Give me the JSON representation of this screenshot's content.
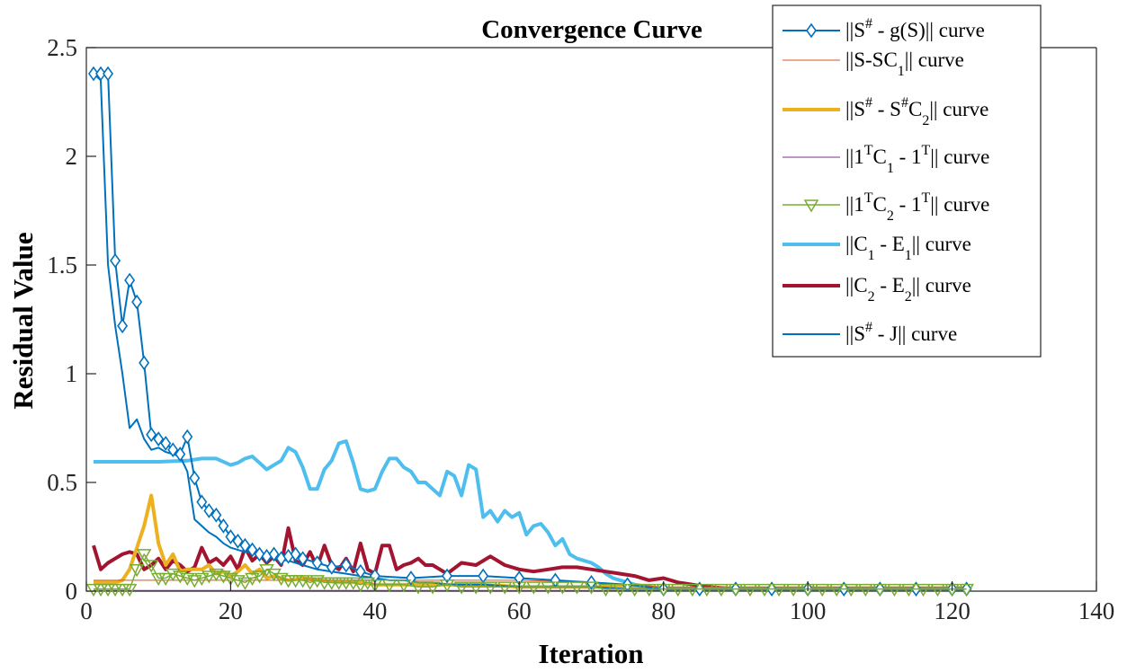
{
  "chart_data": {
    "type": "line",
    "title": "Convergence Curve",
    "xlabel": "Iteration",
    "ylabel": "Residual Value",
    "xlim": [
      0,
      140
    ],
    "ylim": [
      0,
      2.5
    ],
    "xticks": [
      0,
      20,
      40,
      60,
      80,
      100,
      120,
      140
    ],
    "xtick_labels": [
      "0",
      "20",
      "40",
      "60",
      "80",
      "100",
      "120",
      "140"
    ],
    "yticks": [
      0,
      0.5,
      1,
      1.5,
      2,
      2.5
    ],
    "ytick_labels": [
      "0",
      "0.5",
      "1",
      "1.5",
      "2",
      "2.5"
    ],
    "grid": false,
    "legend_position": "top-right",
    "legend": [
      {
        "pre": "||S",
        "sup1": "#",
        "mid1": " - g(S)|| curve",
        "sub1": "",
        "mid2": "",
        "sub2": "",
        "sup2": "",
        "post": ""
      },
      {
        "pre": "||S-SC",
        "sup1": "",
        "mid1": "",
        "sub1": "1",
        "mid2": "|| curve",
        "sub2": "",
        "sup2": "",
        "post": ""
      },
      {
        "pre": "||S",
        "sup1": "#",
        "mid1": " - S",
        "sub1": "",
        "mid2": "",
        "sub2": "",
        "sup2": "#",
        "post": "C",
        "sub3": "2",
        "tail": "|| curve"
      },
      {
        "pre": "||1",
        "sup1": "T",
        "mid1": "C",
        "sub1": "1",
        "mid2": " - 1",
        "sub2": "",
        "sup2": "T",
        "post": "|| curve"
      },
      {
        "pre": "||1",
        "sup1": "T",
        "mid1": "C",
        "sub1": "2",
        "mid2": " - 1",
        "sub2": "",
        "sup2": "T",
        "post": "|| curve"
      },
      {
        "pre": "||C",
        "sup1": "",
        "mid1": "",
        "sub1": "1",
        "mid2": " - E",
        "sub2": "1",
        "sup2": "",
        "post": "|| curve"
      },
      {
        "pre": "||C",
        "sup1": "",
        "mid1": "",
        "sub1": "2",
        "mid2": " - E",
        "sub2": "2",
        "sup2": "",
        "post": "|| curve"
      },
      {
        "pre": "||S",
        "sup1": "#",
        "mid1": " - J|| curve",
        "sub1": "",
        "mid2": "",
        "sub2": "",
        "sup2": "",
        "post": ""
      }
    ],
    "series": [
      {
        "name": "||S# - g(S)|| curve",
        "color": "#0072BD",
        "marker": "diamond",
        "x": [
          1,
          2,
          3,
          4,
          5,
          6,
          7,
          8,
          9,
          10,
          11,
          12,
          13,
          14,
          15,
          16,
          17,
          18,
          19,
          20,
          21,
          22,
          23,
          24,
          25,
          26,
          27,
          28,
          29,
          30,
          32,
          34,
          36,
          38,
          40,
          45,
          50,
          55,
          60,
          65,
          70,
          75,
          80,
          85,
          90,
          95,
          100,
          105,
          110,
          115,
          120,
          122
        ],
        "values": [
          2.38,
          2.38,
          2.38,
          1.52,
          1.22,
          1.43,
          1.33,
          1.05,
          0.72,
          0.7,
          0.68,
          0.65,
          0.63,
          0.71,
          0.52,
          0.41,
          0.37,
          0.35,
          0.3,
          0.25,
          0.23,
          0.21,
          0.19,
          0.17,
          0.16,
          0.17,
          0.15,
          0.16,
          0.17,
          0.15,
          0.13,
          0.11,
          0.12,
          0.09,
          0.07,
          0.06,
          0.07,
          0.07,
          0.06,
          0.05,
          0.04,
          0.03,
          0.01,
          0.01,
          0.01,
          0.01,
          0.01,
          0.01,
          0.01,
          0.01,
          0.01,
          0.01
        ]
      },
      {
        "name": "||S-SC1|| curve",
        "color": "#D95319",
        "marker": "none",
        "x": [
          1,
          10,
          20,
          30,
          40,
          50,
          60,
          70,
          80,
          90,
          100,
          110,
          122
        ],
        "values": [
          0.05,
          0.05,
          0.05,
          0.05,
          0.05,
          0.05,
          0.05,
          0.04,
          0.02,
          0.02,
          0.02,
          0.02,
          0.02
        ]
      },
      {
        "name": "||S# - S#C2|| curve",
        "color": "#EDB120",
        "marker": "none",
        "x": [
          1,
          2,
          3,
          4,
          5,
          6,
          7,
          8,
          9,
          10,
          11,
          12,
          13,
          14,
          15,
          16,
          17,
          18,
          19,
          20,
          21,
          22,
          23,
          24,
          25,
          26,
          28,
          30,
          32,
          35,
          38,
          40,
          45,
          50,
          55,
          60,
          65,
          70,
          75,
          80,
          90,
          100,
          110,
          122
        ],
        "values": [
          0.04,
          0.04,
          0.04,
          0.04,
          0.05,
          0.1,
          0.2,
          0.3,
          0.44,
          0.22,
          0.12,
          0.17,
          0.09,
          0.1,
          0.1,
          0.1,
          0.12,
          0.08,
          0.09,
          0.07,
          0.09,
          0.12,
          0.08,
          0.1,
          0.06,
          0.07,
          0.05,
          0.06,
          0.05,
          0.04,
          0.04,
          0.03,
          0.03,
          0.03,
          0.03,
          0.02,
          0.02,
          0.02,
          0.02,
          0.01,
          0.01,
          0.01,
          0.01,
          0.01
        ]
      },
      {
        "name": "||1TC1 - 1T|| curve",
        "color": "#7E2F8E",
        "marker": "none",
        "x": [
          1,
          20,
          40,
          60,
          80,
          100,
          122
        ],
        "values": [
          0.003,
          0.003,
          0.003,
          0.003,
          0.003,
          0.003,
          0.003
        ]
      },
      {
        "name": "||1TC2 - 1T|| curve",
        "color": "#77AC30",
        "marker": "triangle-down",
        "x": [
          1,
          2,
          3,
          4,
          5,
          6,
          7,
          8,
          9,
          10,
          11,
          12,
          13,
          14,
          15,
          16,
          17,
          18,
          19,
          20,
          21,
          22,
          23,
          24,
          25,
          26,
          27,
          28,
          29,
          30,
          31,
          32,
          33,
          34,
          35,
          36,
          37,
          38,
          39,
          40,
          42,
          44,
          46,
          48,
          50,
          52,
          54,
          56,
          58,
          60,
          62,
          64,
          66,
          68,
          70,
          72,
          74,
          76,
          78,
          80,
          82,
          84,
          86,
          88,
          90,
          92,
          94,
          96,
          98,
          100,
          102,
          104,
          106,
          108,
          110,
          112,
          114,
          116,
          118,
          120,
          122
        ],
        "values": [
          0.01,
          0.01,
          0.01,
          0.01,
          0.01,
          0.01,
          0.1,
          0.17,
          0.12,
          0.06,
          0.06,
          0.08,
          0.07,
          0.06,
          0.05,
          0.06,
          0.07,
          0.08,
          0.07,
          0.06,
          0.05,
          0.04,
          0.06,
          0.07,
          0.1,
          0.08,
          0.06,
          0.05,
          0.05,
          0.05,
          0.04,
          0.05,
          0.04,
          0.04,
          0.04,
          0.04,
          0.04,
          0.03,
          0.04,
          0.03,
          0.03,
          0.03,
          0.02,
          0.02,
          0.03,
          0.02,
          0.02,
          0.02,
          0.02,
          0.02,
          0.02,
          0.02,
          0.02,
          0.02,
          0.02,
          0.01,
          0.01,
          0.01,
          0.01,
          0.01,
          0.01,
          0.01,
          0.01,
          0.01,
          0.01,
          0.01,
          0.01,
          0.01,
          0.01,
          0.01,
          0.01,
          0.01,
          0.01,
          0.01,
          0.01,
          0.01,
          0.01,
          0.01,
          0.01,
          0.01,
          0.01
        ]
      },
      {
        "name": "||C1 - E1|| curve",
        "color": "#4DBEEE",
        "marker": "none",
        "x": [
          1,
          5,
          10,
          14,
          16,
          18,
          20,
          21,
          22,
          23,
          24,
          25,
          26,
          27,
          28,
          29,
          30,
          31,
          32,
          33,
          34,
          35,
          36,
          37,
          38,
          39,
          40,
          41,
          42,
          43,
          44,
          45,
          46,
          47,
          48,
          49,
          50,
          51,
          52,
          53,
          54,
          55,
          56,
          57,
          58,
          59,
          60,
          61,
          62,
          63,
          64,
          65,
          66,
          67,
          68,
          69,
          70,
          71,
          72,
          73,
          74,
          75,
          76,
          78,
          80,
          85,
          90,
          100,
          110,
          122
        ],
        "values": [
          0.595,
          0.595,
          0.595,
          0.6,
          0.61,
          0.61,
          0.58,
          0.59,
          0.61,
          0.62,
          0.59,
          0.56,
          0.58,
          0.6,
          0.66,
          0.64,
          0.57,
          0.47,
          0.47,
          0.56,
          0.6,
          0.68,
          0.69,
          0.59,
          0.47,
          0.46,
          0.47,
          0.55,
          0.61,
          0.61,
          0.57,
          0.55,
          0.5,
          0.5,
          0.47,
          0.44,
          0.55,
          0.53,
          0.44,
          0.58,
          0.56,
          0.34,
          0.37,
          0.32,
          0.37,
          0.34,
          0.36,
          0.26,
          0.3,
          0.31,
          0.27,
          0.21,
          0.24,
          0.17,
          0.15,
          0.14,
          0.13,
          0.11,
          0.08,
          0.06,
          0.05,
          0.04,
          0.03,
          0.02,
          0.01,
          0.01,
          0.01,
          0.01,
          0.01,
          0.01
        ]
      },
      {
        "name": "||C2 - E2|| curve",
        "color": "#A2142F",
        "marker": "none",
        "x": [
          1,
          2,
          3,
          4,
          5,
          6,
          7,
          8,
          9,
          10,
          11,
          12,
          13,
          14,
          15,
          16,
          17,
          18,
          19,
          20,
          21,
          22,
          23,
          24,
          25,
          26,
          27,
          28,
          29,
          30,
          31,
          32,
          33,
          34,
          35,
          36,
          37,
          38,
          39,
          40,
          41,
          42,
          43,
          44,
          45,
          46,
          47,
          48,
          49,
          50,
          52,
          54,
          56,
          58,
          60,
          62,
          64,
          66,
          68,
          70,
          72,
          74,
          76,
          78,
          80,
          82,
          84,
          86,
          90,
          100,
          110,
          122
        ],
        "values": [
          0.21,
          0.1,
          0.13,
          0.15,
          0.17,
          0.18,
          0.17,
          0.1,
          0.12,
          0.15,
          0.1,
          0.14,
          0.12,
          0.09,
          0.11,
          0.2,
          0.13,
          0.15,
          0.12,
          0.16,
          0.1,
          0.2,
          0.14,
          0.17,
          0.13,
          0.16,
          0.12,
          0.29,
          0.14,
          0.12,
          0.18,
          0.11,
          0.21,
          0.12,
          0.1,
          0.15,
          0.09,
          0.22,
          0.1,
          0.08,
          0.21,
          0.21,
          0.1,
          0.12,
          0.13,
          0.15,
          0.12,
          0.12,
          0.1,
          0.08,
          0.13,
          0.12,
          0.16,
          0.12,
          0.1,
          0.09,
          0.1,
          0.11,
          0.11,
          0.1,
          0.09,
          0.08,
          0.07,
          0.05,
          0.06,
          0.04,
          0.03,
          0.02,
          0.01,
          0.01,
          0.01,
          0.01
        ]
      },
      {
        "name": "||S# - J|| curve",
        "color": "#0072BD",
        "marker": "none",
        "x": [
          1,
          2,
          3,
          4,
          5,
          6,
          7,
          8,
          9,
          10,
          11,
          12,
          13,
          14,
          15,
          16,
          17,
          18,
          19,
          20,
          22,
          24,
          26,
          28,
          30,
          32,
          34,
          36,
          38,
          40,
          42,
          44,
          46,
          48,
          50,
          55,
          60,
          65,
          70,
          75,
          80,
          85,
          90,
          100,
          110,
          122
        ],
        "values": [
          2.38,
          2.35,
          1.5,
          1.22,
          1.0,
          0.75,
          0.79,
          0.7,
          0.65,
          0.66,
          0.64,
          0.63,
          0.62,
          0.55,
          0.33,
          0.3,
          0.27,
          0.25,
          0.22,
          0.2,
          0.18,
          0.17,
          0.15,
          0.14,
          0.12,
          0.1,
          0.09,
          0.08,
          0.07,
          0.06,
          0.05,
          0.05,
          0.04,
          0.04,
          0.03,
          0.03,
          0.02,
          0.02,
          0.02,
          0.01,
          0.01,
          0.01,
          0.01,
          0.01,
          0.01,
          0.01
        ]
      }
    ]
  }
}
